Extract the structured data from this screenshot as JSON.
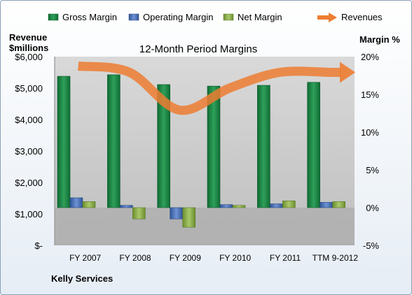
{
  "chart_data": {
    "type": "bar",
    "title": "12-Month Period Margins",
    "company": "Kelly Services",
    "ylabel_left": [
      "Revenue",
      "$millions"
    ],
    "ylabel_right": "Margin %",
    "categories": [
      "FY 2007",
      "FY 2008",
      "FY 2009",
      "FY 2010",
      "FY 2011",
      "TTM 9-2012"
    ],
    "left_axis": {
      "range": [
        0,
        6000
      ],
      "ticks": [
        0,
        1000,
        2000,
        3000,
        4000,
        5000,
        6000
      ],
      "tick_labels": [
        "$-",
        "$1,000",
        "$2,000",
        "$3,000",
        "$4,000",
        "$5,000",
        "$6,000"
      ]
    },
    "right_axis": {
      "range": [
        -5,
        20
      ],
      "ticks": [
        -5,
        0,
        5,
        10,
        15,
        20
      ],
      "tick_labels": [
        "-5%",
        "0%",
        "5%",
        "10%",
        "15%",
        "20%"
      ]
    },
    "series": [
      {
        "name": "Gross Margin",
        "axis": "right",
        "color": "#1f8a4c",
        "values": [
          17.4,
          17.6,
          16.3,
          16.1,
          16.2,
          16.6
        ]
      },
      {
        "name": "Operating Margin",
        "axis": "right",
        "color": "#4f74b8",
        "values": [
          1.3,
          0.3,
          -1.5,
          0.4,
          0.5,
          0.7
        ]
      },
      {
        "name": "Net Margin",
        "axis": "right",
        "color": "#8cb04f",
        "values": [
          0.8,
          -1.5,
          -2.6,
          0.3,
          0.9,
          0.8
        ]
      },
      {
        "name": "Revenues",
        "axis": "left",
        "type": "line",
        "color": "#ed7d31",
        "values": [
          5700,
          5500,
          4300,
          5000,
          5500,
          5500
        ]
      }
    ],
    "legend_position": "top",
    "grid": false
  }
}
